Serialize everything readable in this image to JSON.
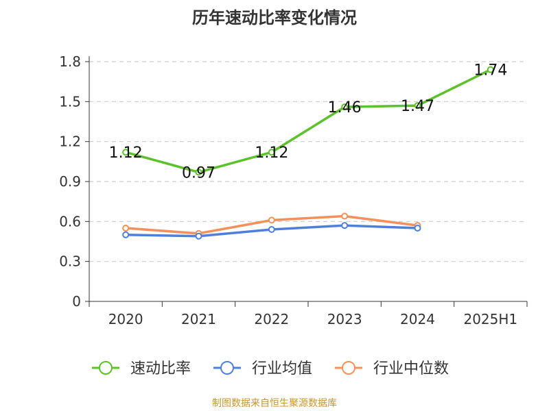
{
  "title": "历年速动比率变化情况",
  "source": "制图数据来自恒生聚源数据库",
  "chart_data": {
    "type": "line",
    "categories": [
      "2020",
      "2021",
      "2022",
      "2023",
      "2024",
      "2025H1"
    ],
    "ylim": [
      0,
      1.8
    ],
    "yticks": [
      "0",
      "0.3",
      "0.6",
      "0.9",
      "1.2",
      "1.5",
      "1.8"
    ],
    "grid": true,
    "legend_position": "bottom",
    "series": [
      {
        "name": "速动比率",
        "color": "#5cc12a",
        "values": [
          1.12,
          0.97,
          1.12,
          1.46,
          1.47,
          1.74
        ],
        "labels": [
          "1.12",
          "0.97",
          "1.12",
          "1.46",
          "1.47",
          "1.74"
        ]
      },
      {
        "name": "行业均值",
        "color": "#4f7fdc",
        "values": [
          0.5,
          0.49,
          0.54,
          0.57,
          0.55,
          null
        ]
      },
      {
        "name": "行业中位数",
        "color": "#f4905a",
        "values": [
          0.55,
          0.51,
          0.61,
          0.64,
          0.57,
          null
        ]
      }
    ]
  }
}
